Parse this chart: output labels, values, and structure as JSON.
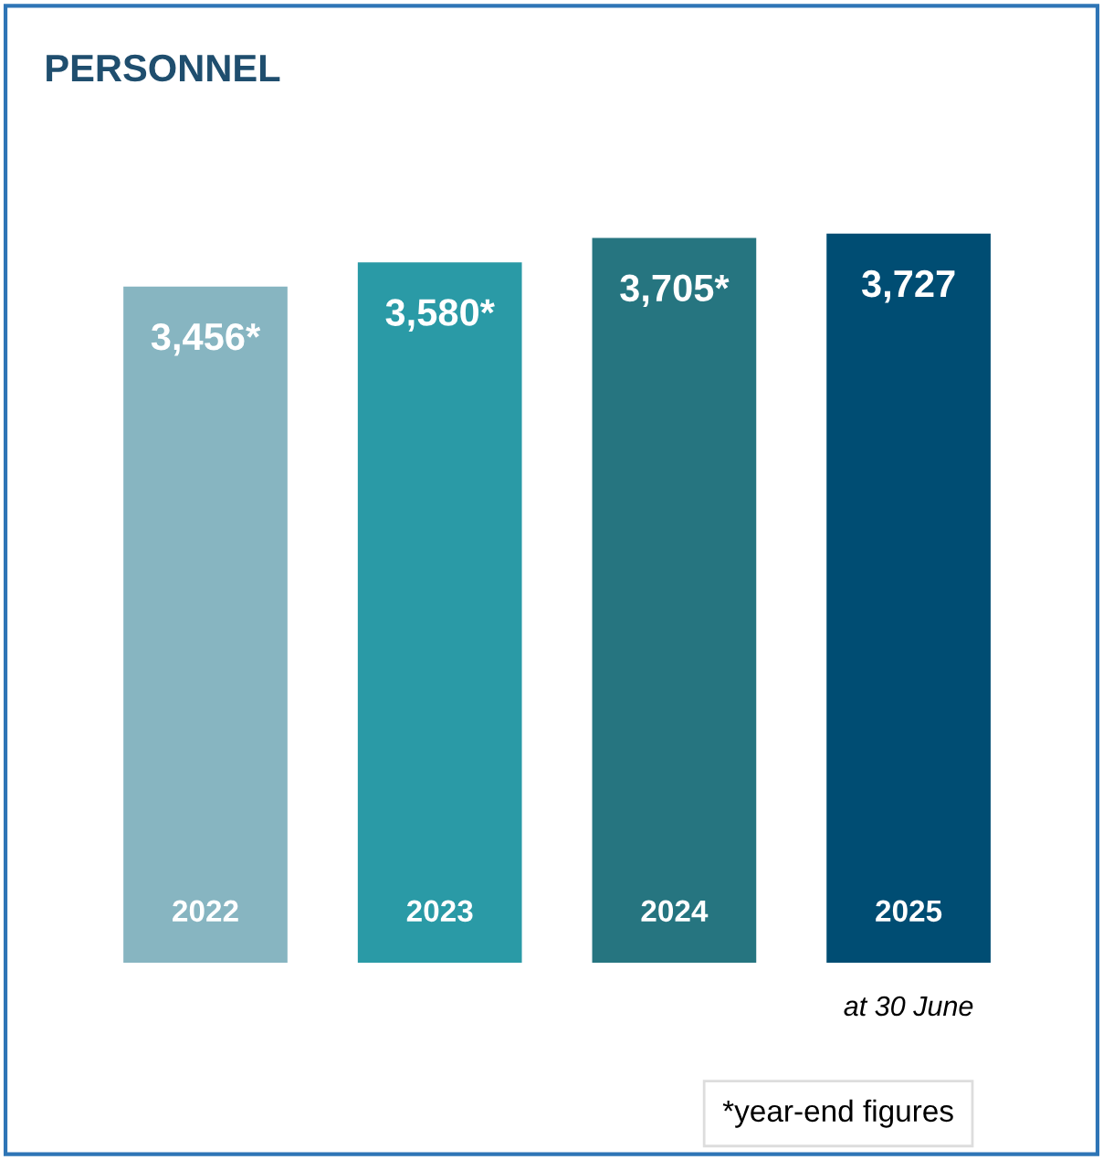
{
  "chart_data": {
    "type": "bar",
    "title": "PERSONNEL",
    "categories": [
      "2022",
      "2023",
      "2024",
      "2025"
    ],
    "values": [
      3456,
      3580,
      3705,
      3727
    ],
    "colors": [
      "#87b5c1",
      "#2a9aa6",
      "#267580",
      "#004d73"
    ],
    "value_labels": [
      "3,456*",
      "3,580*",
      "3,705*",
      "3,727"
    ],
    "annotations": [
      "at 30 June",
      "*year-end figures"
    ],
    "grid": false,
    "legend": false
  }
}
